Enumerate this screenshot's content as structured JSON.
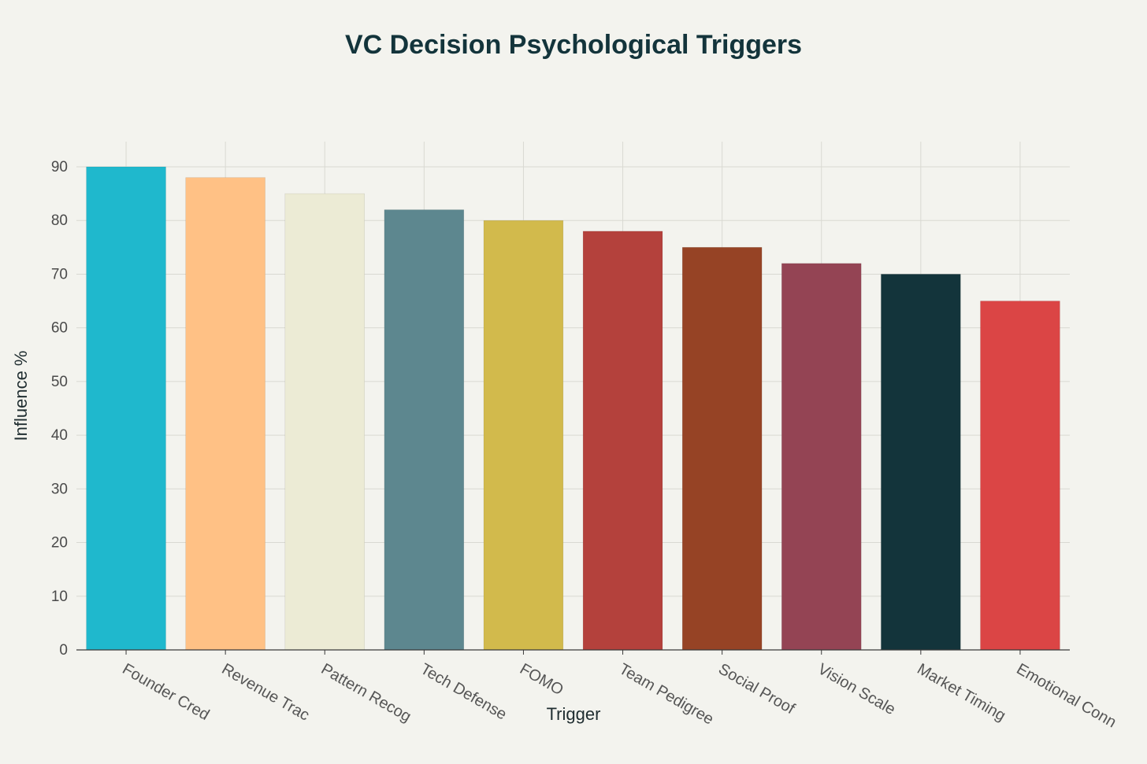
{
  "chart_data": {
    "type": "bar",
    "title": "VC Decision Psychological Triggers",
    "xlabel": "Trigger",
    "ylabel": "Influence %",
    "ylim": [
      0,
      95
    ],
    "yticks": [
      0,
      10,
      20,
      30,
      40,
      50,
      60,
      70,
      80,
      90
    ],
    "grid": true,
    "categories": [
      "Founder Cred",
      "Revenue Trac",
      "Pattern Recog",
      "Tech Defense",
      "FOMO",
      "Team Pedigree",
      "Social Proof",
      "Vision Scale",
      "Market Timing",
      "Emotional Conn"
    ],
    "values": [
      90,
      88,
      85,
      82,
      80,
      78,
      75,
      72,
      70,
      65
    ],
    "colors": [
      "#1fb8cd",
      "#ffc185",
      "#eceBd5",
      "#5d878f",
      "#d2ba4c",
      "#b4413c",
      "#964325",
      "#944454",
      "#13343b",
      "#db4545"
    ]
  }
}
